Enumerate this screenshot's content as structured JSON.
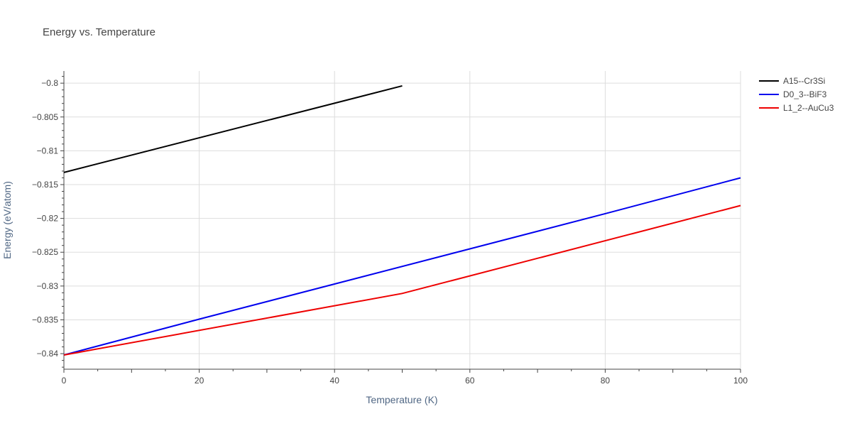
{
  "chart_data": {
    "type": "line",
    "title": "Energy vs. Temperature",
    "xlabel": "Temperature (K)",
    "ylabel": "Energy (eV/atom)",
    "xlim": [
      0,
      100
    ],
    "ylim": [
      -0.8423,
      -0.7982
    ],
    "x_ticks": [
      0,
      20,
      40,
      60,
      80,
      100
    ],
    "x_tick_labels": [
      "0",
      "20",
      "40",
      "60",
      "80",
      "100"
    ],
    "y_ticks": [
      -0.84,
      -0.835,
      -0.83,
      -0.825,
      -0.82,
      -0.815,
      -0.81,
      -0.805,
      -0.8
    ],
    "y_tick_labels": [
      "−0.84",
      "−0.835",
      "−0.83",
      "−0.825",
      "−0.82",
      "−0.815",
      "−0.81",
      "−0.805",
      "−0.8"
    ],
    "grid": true,
    "legend_position": "top-right",
    "series": [
      {
        "name": "A15--Cr3Si",
        "color": "#000000",
        "x": [
          0,
          50
        ],
        "y": [
          -0.8132,
          -0.8004
        ]
      },
      {
        "name": "D0_3--BiF3",
        "color": "#0000ee",
        "x": [
          0,
          20,
          40,
          60,
          80,
          100
        ],
        "y": [
          -0.8402,
          -0.8349,
          -0.8297,
          -0.8245,
          -0.8193,
          -0.814
        ]
      },
      {
        "name": "L1_2--AuCu3",
        "color": "#ee0000",
        "x": [
          0,
          50,
          100
        ],
        "y": [
          -0.8402,
          -0.8311,
          -0.8181
        ]
      }
    ]
  }
}
